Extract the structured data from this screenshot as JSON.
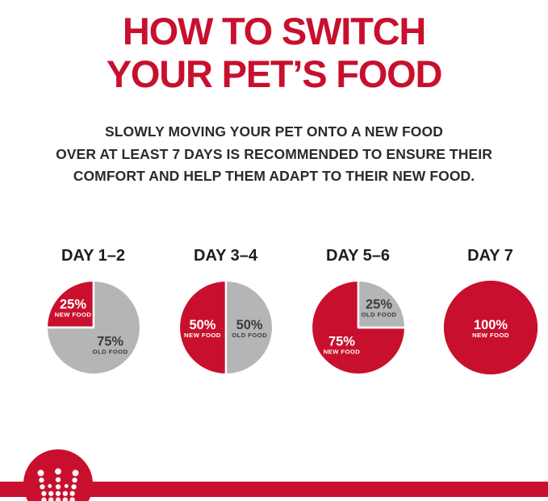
{
  "colors": {
    "red": "#c8102e",
    "gray": "#b4b5b7",
    "text_dark": "#2b2b2b",
    "white": "#ffffff"
  },
  "header": {
    "title_lines": [
      "HOW TO SWITCH",
      "YOUR PET’S FOOD"
    ]
  },
  "intro": {
    "lines": [
      "SLOWLY MOVING YOUR PET ONTO A NEW FOOD",
      "OVER AT LEAST 7 DAYS IS RECOMMENDED TO ENSURE THEIR",
      "COMFORT AND HELP THEM ADAPT TO THEIR NEW FOOD."
    ]
  },
  "chart_data": {
    "type": "pie",
    "unit": "percent of daily ration",
    "legend_position": "inside-slices",
    "charts": [
      {
        "label": "DAY 1–2",
        "start_deg": 270,
        "slices": [
          {
            "name": "NEW FOOD",
            "pct": 25,
            "color": "#c8102e",
            "label_color": "#ffffff"
          },
          {
            "name": "OLD FOOD",
            "pct": 75,
            "color": "#b4b5b7",
            "label_color": "#3c3c3c"
          }
        ]
      },
      {
        "label": "DAY 3–4",
        "start_deg": 180,
        "slices": [
          {
            "name": "NEW FOOD",
            "pct": 50,
            "color": "#c8102e",
            "label_color": "#ffffff"
          },
          {
            "name": "OLD FOOD",
            "pct": 50,
            "color": "#b4b5b7",
            "label_color": "#3c3c3c"
          }
        ]
      },
      {
        "label": "DAY 5–6",
        "start_deg": 90,
        "slices": [
          {
            "name": "NEW FOOD",
            "pct": 75,
            "color": "#c8102e",
            "label_color": "#ffffff"
          },
          {
            "name": "OLD FOOD",
            "pct": 25,
            "color": "#b4b5b7",
            "label_color": "#3c3c3c"
          }
        ]
      },
      {
        "label": "DAY 7",
        "start_deg": 0,
        "slices": [
          {
            "name": "NEW FOOD",
            "pct": 100,
            "color": "#c8102e",
            "label_color": "#ffffff"
          }
        ]
      }
    ]
  },
  "footer": {
    "logo": "royal-canin-crown"
  }
}
